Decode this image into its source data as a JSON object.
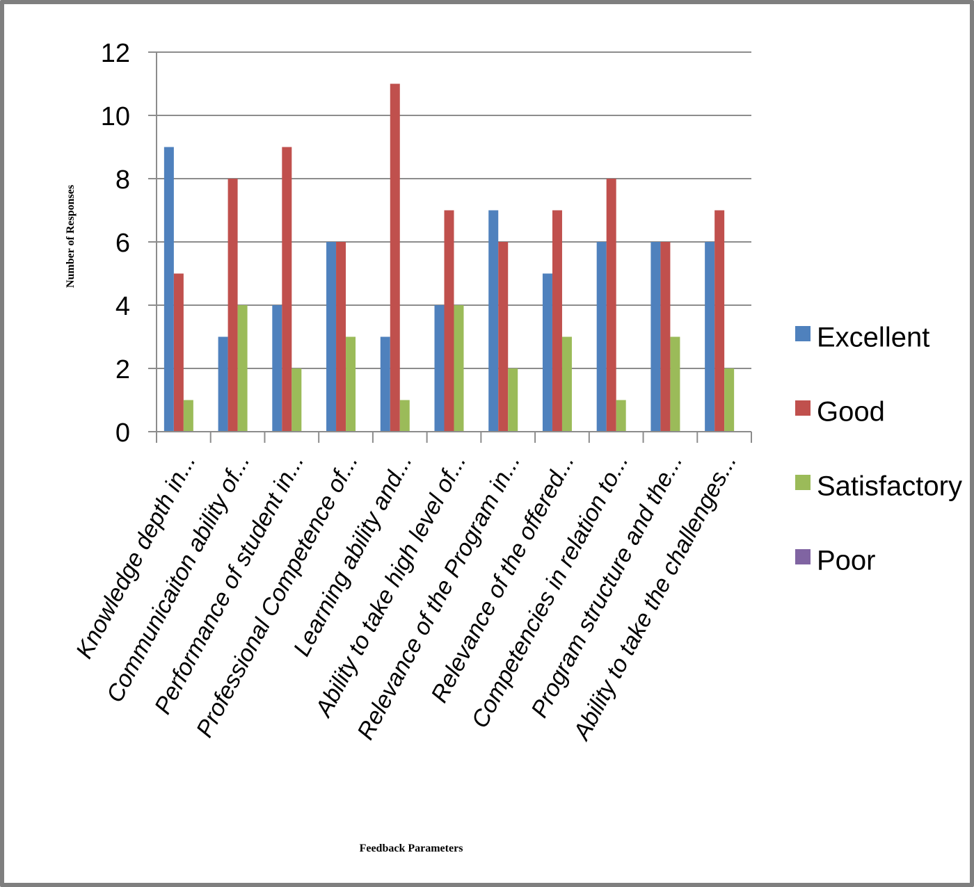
{
  "chart_data": {
    "type": "bar",
    "title": "",
    "xlabel": "Feedback Parameters",
    "ylabel": "Number of Responses",
    "ylim": [
      0,
      12
    ],
    "yticks": [
      0,
      2,
      4,
      6,
      8,
      10,
      12
    ],
    "grid": true,
    "legend_position": "right",
    "categories": [
      "Knowledge depth in...",
      "Communicaiton ability of...",
      "Performance of student in...",
      "Professional Competence of...",
      "Learning ability and...",
      "Ability to take high level of...",
      "Relevance of the Program in...",
      "Relevance of the offered...",
      "Competencies in relation to...",
      "Program structure and the...",
      "Ability to take the challenges..."
    ],
    "series": [
      {
        "name": "Excellent",
        "color": "#4F81BD",
        "values": [
          9,
          3,
          4,
          6,
          3,
          4,
          7,
          5,
          6,
          6,
          6
        ]
      },
      {
        "name": "Good",
        "color": "#C0504D",
        "values": [
          5,
          8,
          9,
          6,
          11,
          7,
          6,
          7,
          8,
          6,
          7
        ]
      },
      {
        "name": "Satisfactory",
        "color": "#9BBB59",
        "values": [
          1,
          4,
          2,
          3,
          1,
          4,
          2,
          3,
          1,
          3,
          2
        ]
      },
      {
        "name": "Poor",
        "color": "#8064A2",
        "values": [
          0,
          0,
          0,
          0,
          0,
          0,
          0,
          0,
          0,
          0,
          0
        ]
      }
    ]
  }
}
